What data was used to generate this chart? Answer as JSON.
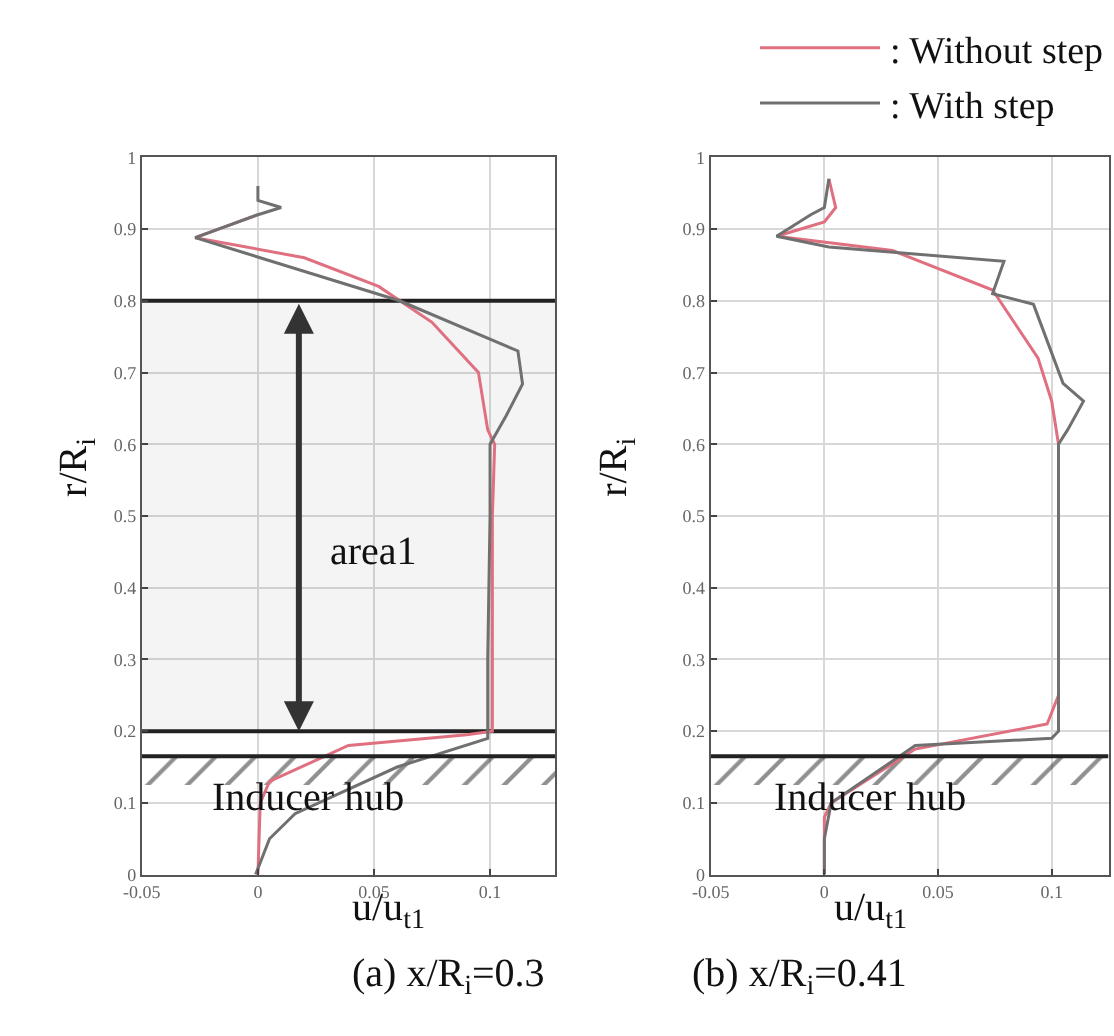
{
  "chart_data": [
    {
      "type": "line",
      "title": "(a) x/R$_{i}$=0.3",
      "xlabel": "u/u$_{t1}$",
      "ylabel": "r/R$_{i}$",
      "xlim": [
        -0.05,
        0.128
      ],
      "ylim": [
        0,
        1
      ],
      "xticks": [
        -0.05,
        0,
        0.05,
        0.1
      ],
      "yticks": [
        0,
        0.1,
        0.2,
        0.3,
        0.4,
        0.5,
        0.6,
        0.7,
        0.8,
        0.9,
        1
      ],
      "grid": true,
      "legend": "top right",
      "series": [
        {
          "name": ": Without step",
          "color": "#e07080",
          "x": [
            0,
            0.001,
            0.005,
            0.039,
            0.09,
            0.101,
            0.101,
            0.101,
            0.102,
            0.099,
            0.095,
            0.075,
            0.052,
            0.02,
            -0.027,
            0
          ],
          "values": [
            0,
            0.1,
            0.13,
            0.18,
            0.195,
            0.2,
            0.3,
            0.5,
            0.6,
            0.62,
            0.7,
            0.77,
            0.82,
            0.86,
            0.888,
            0.92
          ]
        },
        {
          "name": ": With step",
          "color": "#707070",
          "x": [
            -0.001,
            0.005,
            0.016,
            0.06,
            0.099,
            0.099,
            0.099,
            0.1,
            0.1,
            0.107,
            0.114,
            0.112,
            0.061,
            -0.027,
            0,
            0.01,
            0,
            0
          ],
          "values": [
            0,
            0.05,
            0.085,
            0.15,
            0.19,
            0.2,
            0.3,
            0.5,
            0.6,
            0.64,
            0.684,
            0.73,
            0.8,
            0.888,
            0.92,
            0.93,
            0.94,
            0.96
          ]
        }
      ],
      "ref_lines": [
        {
          "axis": "y",
          "value": 0.165,
          "color": "#222222"
        }
      ],
      "bands": [
        {
          "axis": "y",
          "from": 0.125,
          "to": 0.165,
          "color": "#222222"
        },
        {
          "axis": "y",
          "from": 0.2,
          "to": 0.8,
          "label": "area1",
          "color": "#222222"
        }
      ],
      "annotations": [
        "Inducer hub"
      ]
    },
    {
      "type": "line",
      "title": "(b) x/R$_{i}$=0.41",
      "xlabel": "u/u$_{t1}$",
      "ylabel": "r/R$_{i}$",
      "xlim": [
        -0.05,
        0.125
      ],
      "ylim": [
        0,
        1
      ],
      "xticks": [
        -0.05,
        0,
        0.05,
        0.1
      ],
      "yticks": [
        0,
        0.1,
        0.2,
        0.3,
        0.4,
        0.5,
        0.6,
        0.7,
        0.8,
        0.9,
        1
      ],
      "grid": true,
      "legend": "top right",
      "series": [
        {
          "name": ": Without step",
          "color": "#e07080",
          "x": [
            0,
            0,
            0.003,
            0.04,
            0.098,
            0.103,
            0.103,
            0.103,
            0.1,
            0.094,
            0.074,
            0.03,
            -0.021,
            0,
            0.005,
            0.002
          ],
          "values": [
            0,
            0.08,
            0.1,
            0.175,
            0.21,
            0.25,
            0.4,
            0.6,
            0.66,
            0.72,
            0.815,
            0.87,
            0.89,
            0.91,
            0.93,
            0.97
          ]
        },
        {
          "name": ": With step",
          "color": "#707070",
          "x": [
            0,
            0,
            0.003,
            0.04,
            0.1,
            0.103,
            0.103,
            0.103,
            0.107,
            0.114,
            0.105,
            0.092,
            0.074,
            0.079,
            0.002,
            -0.021,
            -0.006,
            0,
            0.002
          ],
          "values": [
            0,
            0.05,
            0.1,
            0.18,
            0.19,
            0.2,
            0.4,
            0.6,
            0.62,
            0.66,
            0.685,
            0.795,
            0.81,
            0.855,
            0.875,
            0.89,
            0.92,
            0.93,
            0.97
          ]
        }
      ],
      "ref_lines": [
        {
          "axis": "y",
          "value": 0.165,
          "color": "#222222"
        }
      ],
      "bands": [
        {
          "axis": "y",
          "from": 0.125,
          "to": 0.165,
          "color": "#222222"
        }
      ],
      "annotations": [
        "Inducer hub"
      ]
    }
  ]
}
